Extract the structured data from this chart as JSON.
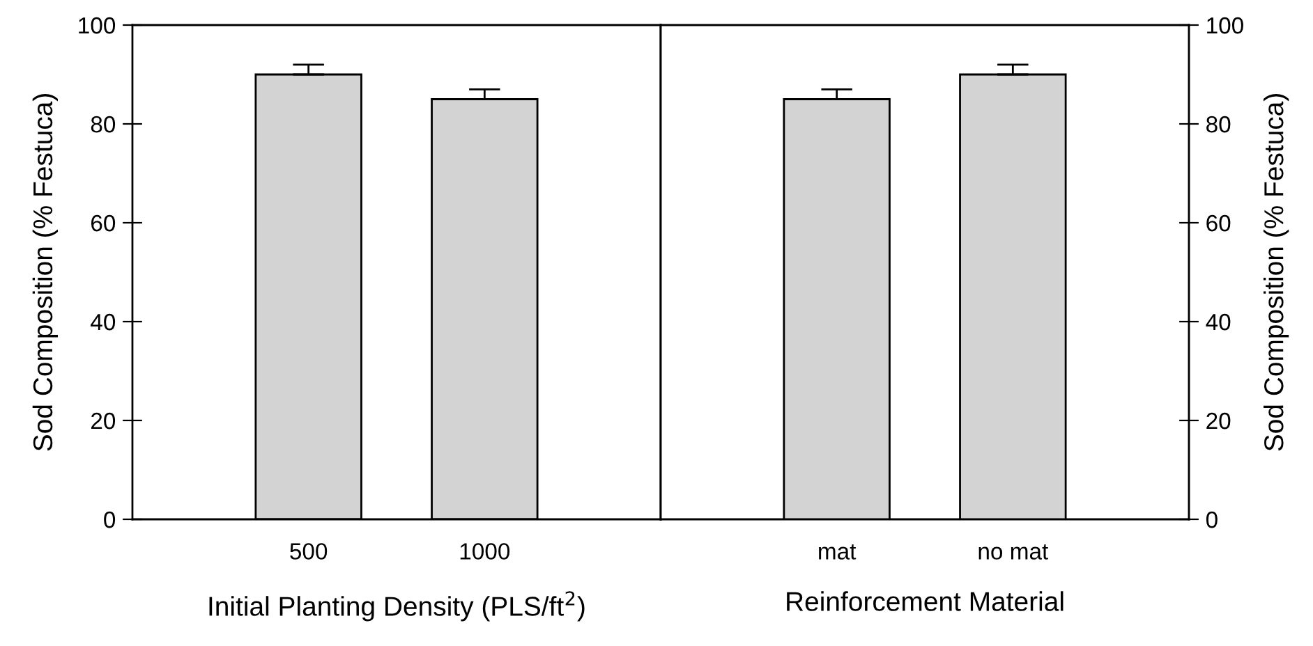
{
  "chart_data": [
    {
      "type": "bar",
      "categories": [
        "500",
        "1000"
      ],
      "xlabel": "Initial Planting Density (PLS/ft$^{2}$)",
      "ylabel": "Sod Composition (% Festuca)",
      "ylim": [
        0,
        100
      ],
      "yticks": [
        0,
        20,
        40,
        60,
        80,
        100
      ],
      "color": "#d3d3d3",
      "series": [
        {
          "values": [
            90,
            85
          ],
          "errors": [
            [
              90,
              92
            ],
            [
              85,
              87
            ]
          ]
        }
      ]
    },
    {
      "type": "bar",
      "categories": [
        "mat",
        "no mat"
      ],
      "xlabel": "Reinforcement Material",
      "y2label": "Sod Composition (% Festuca)",
      "y2lim": [
        0,
        100
      ],
      "y2ticks": [
        0,
        20,
        40,
        60,
        80,
        100
      ],
      "color": "#d3d3d3",
      "series": [
        {
          "values": [
            85,
            90
          ],
          "errors": [
            [
              85,
              87
            ],
            [
              90,
              92
            ]
          ],
          "axis": "y2"
        }
      ]
    }
  ]
}
